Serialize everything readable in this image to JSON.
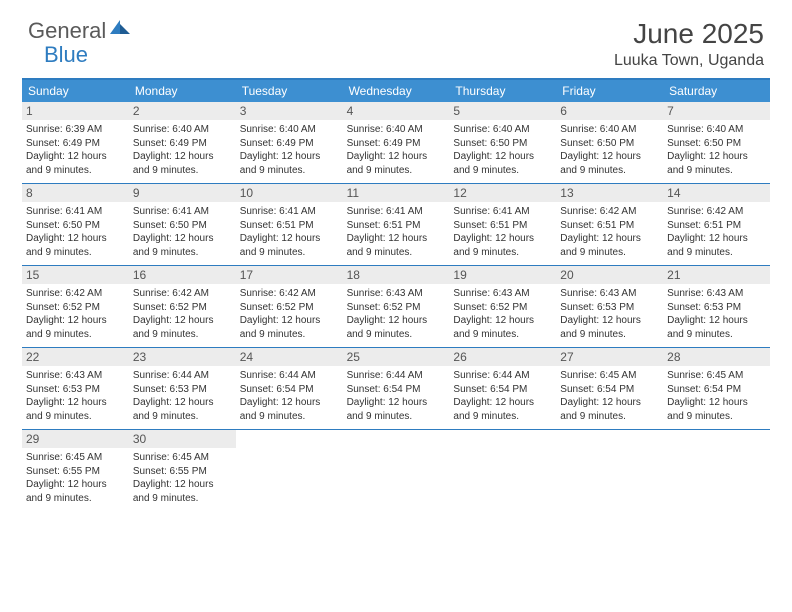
{
  "logo": {
    "text1": "General",
    "text2": "Blue"
  },
  "title": "June 2025",
  "location": "Luuka Town, Uganda",
  "colors": {
    "header_bar": "#3d8fd1",
    "border": "#2e7cc0",
    "daynum_bg": "#ececec",
    "text": "#333333",
    "logo_gray": "#5a5a5a",
    "logo_blue": "#2e7cc0"
  },
  "days_of_week": [
    "Sunday",
    "Monday",
    "Tuesday",
    "Wednesday",
    "Thursday",
    "Friday",
    "Saturday"
  ],
  "weeks": [
    [
      {
        "n": "1",
        "sr": "6:39 AM",
        "ss": "6:49 PM",
        "dl": "12 hours and 9 minutes."
      },
      {
        "n": "2",
        "sr": "6:40 AM",
        "ss": "6:49 PM",
        "dl": "12 hours and 9 minutes."
      },
      {
        "n": "3",
        "sr": "6:40 AM",
        "ss": "6:49 PM",
        "dl": "12 hours and 9 minutes."
      },
      {
        "n": "4",
        "sr": "6:40 AM",
        "ss": "6:49 PM",
        "dl": "12 hours and 9 minutes."
      },
      {
        "n": "5",
        "sr": "6:40 AM",
        "ss": "6:50 PM",
        "dl": "12 hours and 9 minutes."
      },
      {
        "n": "6",
        "sr": "6:40 AM",
        "ss": "6:50 PM",
        "dl": "12 hours and 9 minutes."
      },
      {
        "n": "7",
        "sr": "6:40 AM",
        "ss": "6:50 PM",
        "dl": "12 hours and 9 minutes."
      }
    ],
    [
      {
        "n": "8",
        "sr": "6:41 AM",
        "ss": "6:50 PM",
        "dl": "12 hours and 9 minutes."
      },
      {
        "n": "9",
        "sr": "6:41 AM",
        "ss": "6:50 PM",
        "dl": "12 hours and 9 minutes."
      },
      {
        "n": "10",
        "sr": "6:41 AM",
        "ss": "6:51 PM",
        "dl": "12 hours and 9 minutes."
      },
      {
        "n": "11",
        "sr": "6:41 AM",
        "ss": "6:51 PM",
        "dl": "12 hours and 9 minutes."
      },
      {
        "n": "12",
        "sr": "6:41 AM",
        "ss": "6:51 PM",
        "dl": "12 hours and 9 minutes."
      },
      {
        "n": "13",
        "sr": "6:42 AM",
        "ss": "6:51 PM",
        "dl": "12 hours and 9 minutes."
      },
      {
        "n": "14",
        "sr": "6:42 AM",
        "ss": "6:51 PM",
        "dl": "12 hours and 9 minutes."
      }
    ],
    [
      {
        "n": "15",
        "sr": "6:42 AM",
        "ss": "6:52 PM",
        "dl": "12 hours and 9 minutes."
      },
      {
        "n": "16",
        "sr": "6:42 AM",
        "ss": "6:52 PM",
        "dl": "12 hours and 9 minutes."
      },
      {
        "n": "17",
        "sr": "6:42 AM",
        "ss": "6:52 PM",
        "dl": "12 hours and 9 minutes."
      },
      {
        "n": "18",
        "sr": "6:43 AM",
        "ss": "6:52 PM",
        "dl": "12 hours and 9 minutes."
      },
      {
        "n": "19",
        "sr": "6:43 AM",
        "ss": "6:52 PM",
        "dl": "12 hours and 9 minutes."
      },
      {
        "n": "20",
        "sr": "6:43 AM",
        "ss": "6:53 PM",
        "dl": "12 hours and 9 minutes."
      },
      {
        "n": "21",
        "sr": "6:43 AM",
        "ss": "6:53 PM",
        "dl": "12 hours and 9 minutes."
      }
    ],
    [
      {
        "n": "22",
        "sr": "6:43 AM",
        "ss": "6:53 PM",
        "dl": "12 hours and 9 minutes."
      },
      {
        "n": "23",
        "sr": "6:44 AM",
        "ss": "6:53 PM",
        "dl": "12 hours and 9 minutes."
      },
      {
        "n": "24",
        "sr": "6:44 AM",
        "ss": "6:54 PM",
        "dl": "12 hours and 9 minutes."
      },
      {
        "n": "25",
        "sr": "6:44 AM",
        "ss": "6:54 PM",
        "dl": "12 hours and 9 minutes."
      },
      {
        "n": "26",
        "sr": "6:44 AM",
        "ss": "6:54 PM",
        "dl": "12 hours and 9 minutes."
      },
      {
        "n": "27",
        "sr": "6:45 AM",
        "ss": "6:54 PM",
        "dl": "12 hours and 9 minutes."
      },
      {
        "n": "28",
        "sr": "6:45 AM",
        "ss": "6:54 PM",
        "dl": "12 hours and 9 minutes."
      }
    ],
    [
      {
        "n": "29",
        "sr": "6:45 AM",
        "ss": "6:55 PM",
        "dl": "12 hours and 9 minutes."
      },
      {
        "n": "30",
        "sr": "6:45 AM",
        "ss": "6:55 PM",
        "dl": "12 hours and 9 minutes."
      },
      null,
      null,
      null,
      null,
      null
    ]
  ],
  "labels": {
    "sunrise": "Sunrise:",
    "sunset": "Sunset:",
    "daylight": "Daylight:"
  }
}
